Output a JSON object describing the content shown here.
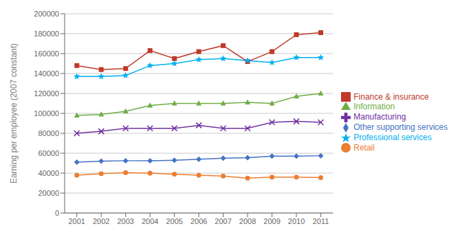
{
  "chart_data": {
    "type": "line",
    "y_label": "Earning per employee (2007 constant)",
    "x": [
      2001,
      2002,
      2003,
      2004,
      2005,
      2006,
      2007,
      2008,
      2009,
      2010,
      2011
    ],
    "xlim": [
      2000.5,
      2011.5
    ],
    "xticks": [
      2001,
      2002,
      2003,
      2004,
      2005,
      2006,
      2007,
      2008,
      2009,
      2010,
      2011
    ],
    "ylim": [
      0,
      200000
    ],
    "yticks": [
      0,
      20000,
      40000,
      60000,
      80000,
      100000,
      120000,
      140000,
      160000,
      180000,
      200000
    ],
    "grid": true,
    "legend": "right",
    "series": [
      {
        "name": "Other supporting services",
        "color": "#4472C4",
        "marker": "diamond",
        "values": [
          51000,
          52000,
          52500,
          52500,
          53000,
          54000,
          55000,
          55500,
          57000,
          57000,
          57500
        ]
      },
      {
        "name": "Finance & insurance",
        "color": "#C0392B",
        "marker": "square",
        "values": [
          148000,
          144000,
          145000,
          163000,
          155000,
          162000,
          168000,
          152000,
          162000,
          179000,
          181000
        ]
      },
      {
        "name": "Information",
        "color": "#70AD47",
        "marker": "triangle",
        "values": [
          98000,
          99000,
          102000,
          108000,
          110000,
          110000,
          110000,
          111000,
          110000,
          117000,
          120000
        ]
      },
      {
        "name": "Manufacturing",
        "color": "#7030A0",
        "marker": "x",
        "values": [
          80000,
          82000,
          85000,
          85000,
          85000,
          88000,
          85000,
          85000,
          91000,
          92000,
          91000
        ]
      },
      {
        "name": "Professional services",
        "color": "#00B0F0",
        "marker": "star",
        "values": [
          137000,
          137000,
          138000,
          148000,
          150000,
          154000,
          155000,
          153000,
          151000,
          156000,
          156000
        ]
      },
      {
        "name": "Retail",
        "color": "#ED7D31",
        "marker": "circle",
        "values": [
          38000,
          39500,
          40500,
          40000,
          39000,
          38000,
          37000,
          35000,
          36000,
          36000,
          35500
        ]
      }
    ]
  }
}
